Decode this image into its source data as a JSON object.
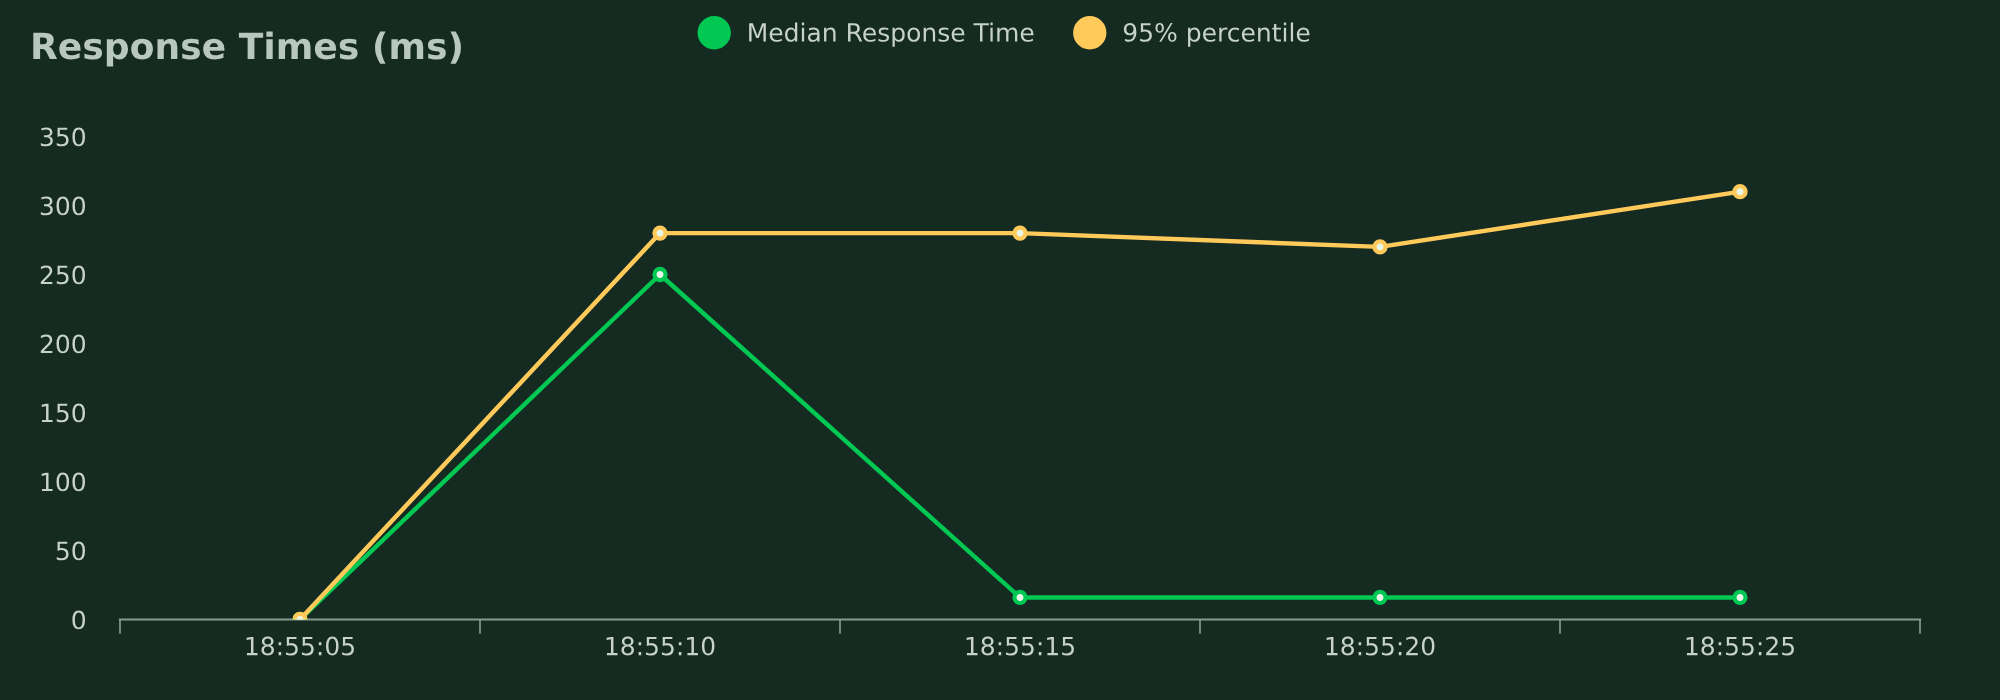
{
  "chart_data": {
    "type": "line",
    "title": "Response Times (ms)",
    "categories": [
      "18:55:05",
      "18:55:10",
      "18:55:15",
      "18:55:20",
      "18:55:25"
    ],
    "series": [
      {
        "name": "Median Response Time",
        "color": "#00c853",
        "values": [
          0,
          250,
          16,
          16,
          16
        ]
      },
      {
        "name": "95% percentile",
        "color": "#ffca5a",
        "values": [
          0,
          280,
          280,
          270,
          310
        ]
      }
    ],
    "ylim": [
      0,
      350
    ],
    "yticks": [
      0,
      50,
      100,
      150,
      200,
      250,
      300,
      350
    ],
    "grid": false,
    "legend": "top",
    "marker": "circle",
    "line_style": "solid"
  }
}
